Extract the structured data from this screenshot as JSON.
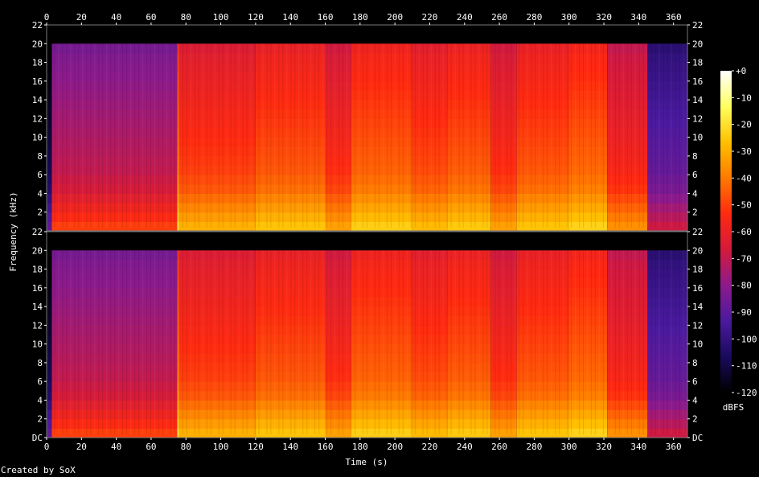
{
  "credit": "Created by SoX",
  "chart_data": {
    "type": "heatmap",
    "title": "",
    "xlabel": "Time (s)",
    "ylabel": "Frequency (kHz)",
    "colorbar_label": "dBFS",
    "xlim": [
      0,
      368
    ],
    "ylim": [
      0,
      22
    ],
    "x_ticks": [
      0,
      20,
      40,
      60,
      80,
      100,
      120,
      140,
      160,
      180,
      200,
      220,
      240,
      260,
      280,
      300,
      320,
      340,
      360
    ],
    "y_tick_labels_top": [
      "22",
      "20",
      "18",
      "16",
      "14",
      "12",
      "10",
      "8",
      "6",
      "4",
      "2"
    ],
    "y_tick_labels_bottom": [
      "22",
      "20",
      "18",
      "16",
      "14",
      "12",
      "10",
      "8",
      "6",
      "4",
      "2",
      "DC"
    ],
    "colorbar_ticks": [
      "+0",
      "-10",
      "-20",
      "-30",
      "-40",
      "-50",
      "-60",
      "-70",
      "-80",
      "-90",
      "-100",
      "-110",
      "-120"
    ],
    "colorbar_range": [
      -120,
      0
    ],
    "channels": 2,
    "bandwidth_limit_khz": 20,
    "segments": [
      {
        "start": 0,
        "end": 3,
        "level": -110
      },
      {
        "start": 3,
        "end": 75,
        "level": -72
      },
      {
        "start": 75,
        "end": 76,
        "level": -40
      },
      {
        "start": 76,
        "end": 120,
        "level": -52
      },
      {
        "start": 120,
        "end": 160,
        "level": -48
      },
      {
        "start": 160,
        "end": 175,
        "level": -55
      },
      {
        "start": 175,
        "end": 210,
        "level": -46
      },
      {
        "start": 210,
        "end": 230,
        "level": -50
      },
      {
        "start": 230,
        "end": 255,
        "level": -47
      },
      {
        "start": 255,
        "end": 270,
        "level": -55
      },
      {
        "start": 270,
        "end": 300,
        "level": -48
      },
      {
        "start": 300,
        "end": 322,
        "level": -45
      },
      {
        "start": 322,
        "end": 345,
        "level": -58
      },
      {
        "start": 345,
        "end": 368,
        "level": -90
      }
    ],
    "colormap": [
      "#000000",
      "#1a0a5c",
      "#4a1a9e",
      "#8c1a8c",
      "#d41a3c",
      "#ff2a10",
      "#ff7a00",
      "#ffc000",
      "#ffff60",
      "#ffffff"
    ]
  }
}
